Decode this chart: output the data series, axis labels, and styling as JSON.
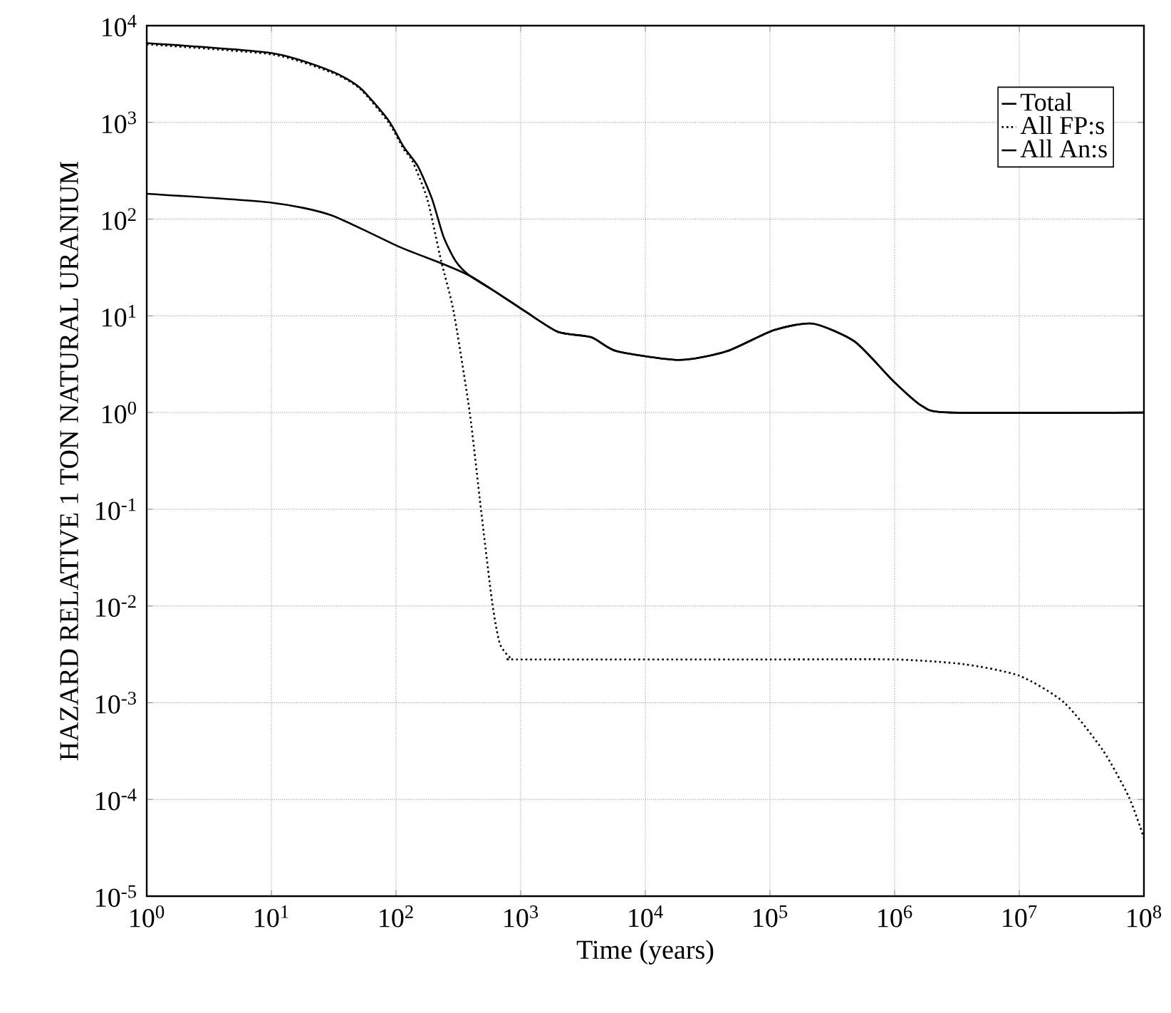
{
  "chart_data": {
    "type": "line",
    "xlabel": "Time (years)",
    "ylabel": "HAZARD RELATIVE 1 TON NATURAL URANIUM",
    "log": "xy",
    "grid": true,
    "legend": "top right",
    "marker": "none",
    "xlim": [
      1,
      100000000
    ],
    "ylim": [
      1e-05,
      10000
    ],
    "xticks": [
      {
        "value": 1,
        "label": "10$^{0}$"
      },
      {
        "value": 10,
        "label": "10$^{1}$"
      },
      {
        "value": 100,
        "label": "10$^{2}$"
      },
      {
        "value": 1000,
        "label": "10$^{3}$"
      },
      {
        "value": 10000,
        "label": "10$^{4}$"
      },
      {
        "value": 100000,
        "label": "10$^{5}$"
      },
      {
        "value": 1000000,
        "label": "10$^{6}$"
      },
      {
        "value": 10000000,
        "label": "10$^{7}$"
      },
      {
        "value": 100000000,
        "label": "10$^{8}$"
      }
    ],
    "yticks": [
      {
        "value": 1e-05,
        "label": "10$^{-5}$"
      },
      {
        "value": 0.0001,
        "label": "10$^{-4}$"
      },
      {
        "value": 0.001,
        "label": "10$^{-3}$"
      },
      {
        "value": 0.01,
        "label": "10$^{-2}$"
      },
      {
        "value": 0.1,
        "label": "10$^{-1}$"
      },
      {
        "value": 1,
        "label": "10$^{0}$"
      },
      {
        "value": 10,
        "label": "10$^{1}$"
      },
      {
        "value": 100,
        "label": "10$^{2}$"
      },
      {
        "value": 1000,
        "label": "10$^{3}$"
      },
      {
        "value": 10000,
        "label": "10$^{4}$"
      }
    ],
    "series": [
      {
        "name": "Total",
        "color": "#000000",
        "line_style": "solid",
        "x": [
          1,
          10,
          30,
          51,
          87,
          115,
          150,
          195,
          240,
          300,
          390,
          660,
          1100,
          2000,
          3700,
          5900,
          18600,
          45000,
          107000,
          220000,
          480000,
          980000,
          1660000,
          2800000,
          100000000
        ],
        "values": [
          6600,
          5200,
          3400,
          2300,
          1050,
          560,
          350,
          160,
          66,
          37,
          26,
          17,
          11,
          6.8,
          6.0,
          4.3,
          3.5,
          4.3,
          7.1,
          8.3,
          5.4,
          2.1,
          1.17,
          1.0,
          1.0
        ]
      },
      {
        "name": "All FP:s",
        "color": "#000000",
        "line_style": "dotted",
        "x": [
          1,
          10,
          30,
          51,
          87,
          115,
          135,
          178,
          230,
          290,
          390,
          480,
          590,
          680,
          830,
          1000,
          100000,
          1000000,
          3600000,
          10000000,
          23000000,
          47000000,
          76000000,
          100000000
        ],
        "values": [
          6400,
          5050,
          3300,
          2250,
          1000,
          530,
          400,
          162,
          37,
          11,
          1.0,
          0.1,
          0.011,
          0.0041,
          0.0029,
          0.0028,
          0.0028,
          0.0028,
          0.0025,
          0.0019,
          0.001,
          0.00032,
          0.000105,
          4e-05
        ]
      },
      {
        "name": "All An:s",
        "color": "#000000",
        "line_style": "solid",
        "x": [
          1,
          10,
          30,
          105,
          230,
          390,
          660,
          1100,
          2000,
          3700,
          5900,
          18600,
          45000,
          107000,
          220000,
          480000,
          980000,
          1660000,
          2800000,
          100000000
        ],
        "values": [
          183,
          148,
          110,
          52,
          35,
          26,
          17,
          11,
          6.8,
          6.0,
          4.3,
          3.5,
          4.3,
          7.1,
          8.3,
          5.4,
          2.1,
          1.17,
          1.0,
          1.0
        ]
      }
    ]
  }
}
